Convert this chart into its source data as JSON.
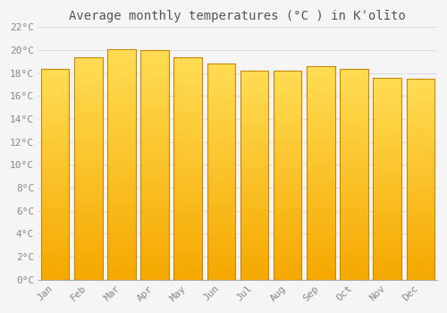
{
  "title": "Average monthly temperatures (°C ) in Kʾolīto",
  "months": [
    "Jan",
    "Feb",
    "Mar",
    "Apr",
    "May",
    "Jun",
    "Jul",
    "Aug",
    "Sep",
    "Oct",
    "Nov",
    "Dec"
  ],
  "values": [
    18.4,
    19.4,
    20.1,
    20.0,
    19.4,
    18.8,
    18.2,
    18.2,
    18.6,
    18.4,
    17.6,
    17.5
  ],
  "bar_color_top": "#FFDD55",
  "bar_color_bottom": "#F5A800",
  "bar_edge_color": "#C8860A",
  "ylim": [
    0,
    22
  ],
  "yticks": [
    0,
    2,
    4,
    6,
    8,
    10,
    12,
    14,
    16,
    18,
    20,
    22
  ],
  "background_color": "#f5f5f5",
  "plot_bg_color": "#f5f5f5",
  "grid_color": "#dddddd",
  "title_fontsize": 10,
  "tick_fontsize": 8,
  "tick_color": "#888888",
  "title_color": "#555555",
  "bar_width": 0.85
}
